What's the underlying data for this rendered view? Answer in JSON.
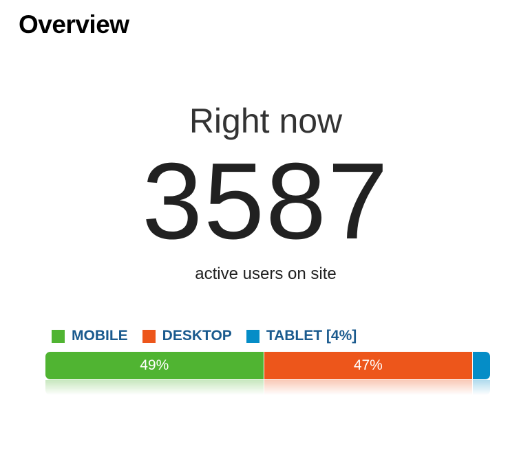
{
  "panel": {
    "title": "Overview"
  },
  "realtime": {
    "heading": "Right now",
    "count": "3587",
    "caption": "active users on site"
  },
  "devices": [
    {
      "label": "MOBILE",
      "color": "#50b432",
      "percent": 49,
      "bar_label": "49%"
    },
    {
      "label": "DESKTOP",
      "color": "#ed561b",
      "percent": 47,
      "bar_label": "47%"
    },
    {
      "label": "TABLET [4%]",
      "color": "#058dc7",
      "percent": 4,
      "bar_label": ""
    }
  ]
}
